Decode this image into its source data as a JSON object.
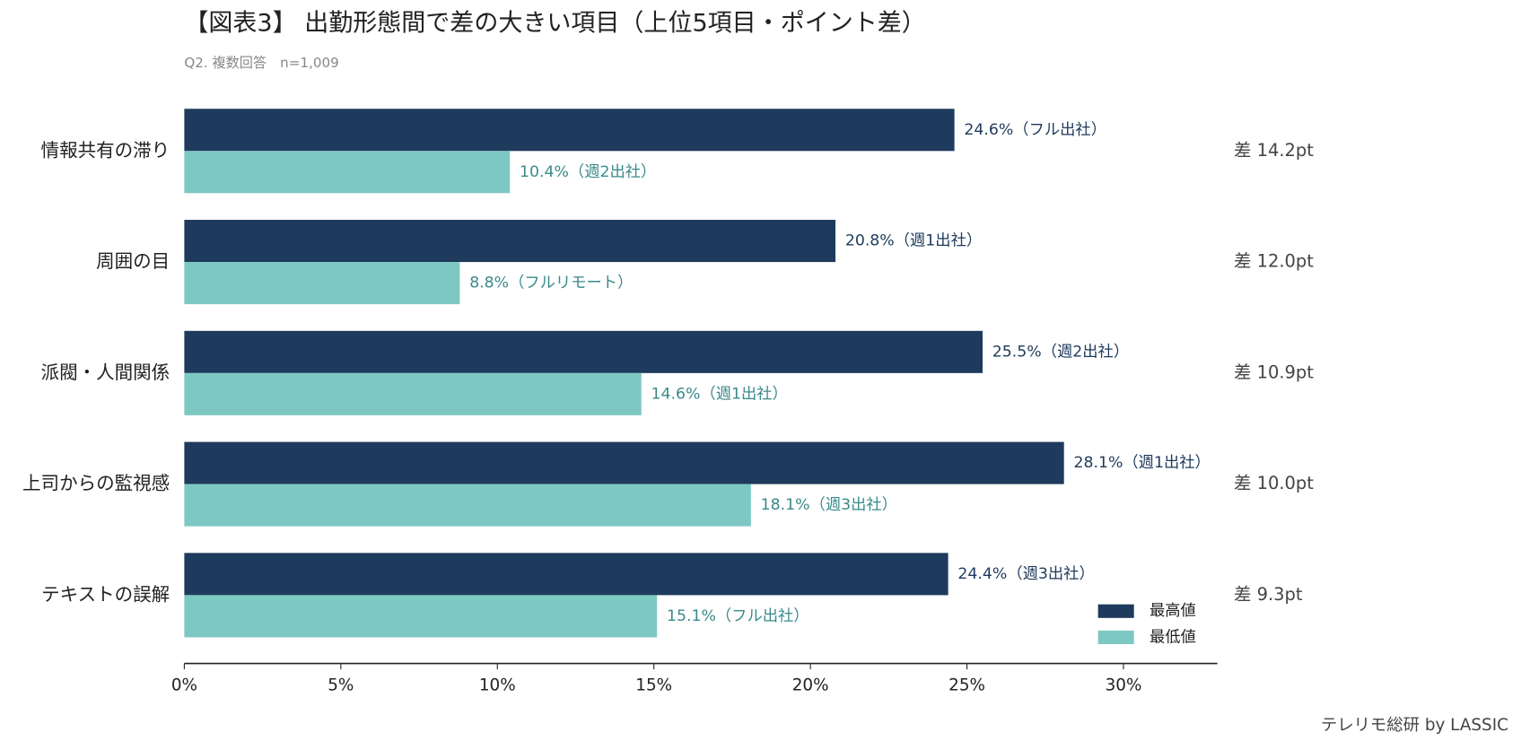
{
  "chart_data": {
    "type": "grouped-hbar",
    "title": "【図表3】 出勤形態間で差の大きい項目（上位5項目・ポイント差）",
    "subtitle": "Q2. 複数回答　n=1,009",
    "source": "テレリモ総研 by LASSIC",
    "categories": [
      "情報共有の滞り",
      "周囲の目",
      "派閥・人間関係",
      "上司からの監視感",
      "テキストの誤解"
    ],
    "series": [
      {
        "name": "最高値",
        "color": "#1e3a5c",
        "values": [
          24.6,
          20.8,
          25.5,
          28.1,
          24.4
        ],
        "value_labels": [
          "24.6%（フル出社）",
          "20.8%（週1出社）",
          "25.5%（週2出社）",
          "28.1%（週1出社）",
          "24.4%（週3出社）"
        ]
      },
      {
        "name": "最低値",
        "color": "#7ec8c4",
        "values": [
          10.4,
          8.8,
          14.6,
          18.1,
          15.1
        ],
        "value_labels": [
          "10.4%（週2出社）",
          "8.8%（フルリモート）",
          "14.6%（週1出社）",
          "18.1%（週3出社）",
          "15.1%（フル出社）"
        ]
      }
    ],
    "annotations": [
      "差 14.2pt",
      "差 12.0pt",
      "差 10.9pt",
      "差 10.0pt",
      "差 9.3pt"
    ],
    "xlim": [
      0,
      33
    ],
    "xticks": [
      {
        "value": 0,
        "label": "0%"
      },
      {
        "value": 5,
        "label": "5%"
      },
      {
        "value": 10,
        "label": "10%"
      },
      {
        "value": 15,
        "label": "15%"
      },
      {
        "value": 20,
        "label": "20%"
      },
      {
        "value": 25,
        "label": "25%"
      },
      {
        "value": 30,
        "label": "30%"
      }
    ],
    "legend": "lower right"
  }
}
